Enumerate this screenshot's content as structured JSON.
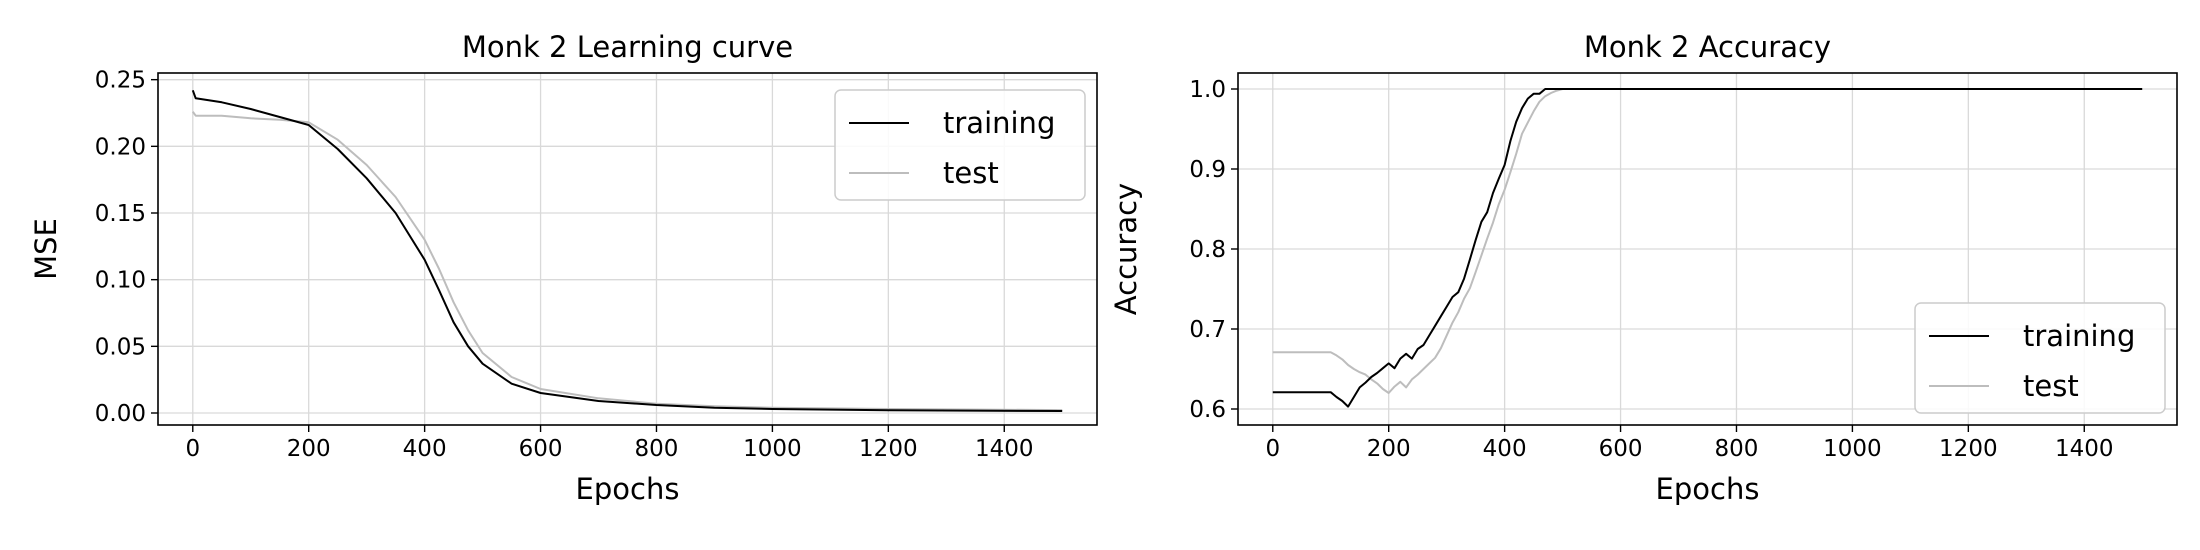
{
  "chart_data": [
    {
      "type": "line",
      "title": "Monk 2 Learning curve",
      "xlabel": "Epochs",
      "ylabel": "MSE",
      "xlim": [
        -60,
        1560
      ],
      "ylim": [
        -0.009,
        0.255
      ],
      "xticks": [
        0,
        200,
        400,
        600,
        800,
        1000,
        1200,
        1400
      ],
      "xtick_labels": [
        "0",
        "200",
        "400",
        "600",
        "800",
        "1000",
        "1200",
        "1400"
      ],
      "yticks": [
        0.0,
        0.05,
        0.1,
        0.15,
        0.2,
        0.25
      ],
      "ytick_labels": [
        "0.00",
        "0.05",
        "0.10",
        "0.15",
        "0.20",
        "0.25"
      ],
      "grid": true,
      "legend_position": "upper right",
      "series": [
        {
          "name": "training",
          "color": "#000000",
          "x": [
            0,
            5,
            50,
            100,
            150,
            200,
            250,
            300,
            350,
            400,
            425,
            450,
            475,
            500,
            550,
            600,
            700,
            800,
            900,
            1000,
            1200,
            1500
          ],
          "y": [
            0.242,
            0.236,
            0.233,
            0.228,
            0.222,
            0.216,
            0.198,
            0.176,
            0.15,
            0.115,
            0.092,
            0.068,
            0.05,
            0.037,
            0.022,
            0.015,
            0.009,
            0.006,
            0.004,
            0.003,
            0.002,
            0.0015
          ]
        },
        {
          "name": "test",
          "color": "#bdbdbd",
          "x": [
            0,
            5,
            50,
            100,
            150,
            200,
            250,
            300,
            350,
            400,
            425,
            450,
            475,
            500,
            550,
            600,
            700,
            800,
            900,
            1000,
            1200,
            1500
          ],
          "y": [
            0.226,
            0.223,
            0.223,
            0.221,
            0.22,
            0.218,
            0.205,
            0.186,
            0.162,
            0.13,
            0.108,
            0.083,
            0.062,
            0.045,
            0.027,
            0.018,
            0.011,
            0.007,
            0.005,
            0.004,
            0.003,
            0.0022
          ]
        }
      ]
    },
    {
      "type": "line",
      "title": "Monk 2 Accuracy",
      "xlabel": "Epochs",
      "ylabel": "Accuracy",
      "xlim": [
        -60,
        1560
      ],
      "ylim": [
        0.58,
        1.02
      ],
      "xticks": [
        0,
        200,
        400,
        600,
        800,
        1000,
        1200,
        1400
      ],
      "xtick_labels": [
        "0",
        "200",
        "400",
        "600",
        "800",
        "1000",
        "1200",
        "1400"
      ],
      "yticks": [
        0.6,
        0.7,
        0.8,
        0.9,
        1.0
      ],
      "ytick_labels": [
        "0.6",
        "0.7",
        "0.8",
        "0.9",
        "1.0"
      ],
      "grid": true,
      "legend_position": "lower right",
      "series": [
        {
          "name": "training",
          "color": "#000000",
          "x": [
            0,
            100,
            110,
            120,
            130,
            140,
            150,
            160,
            170,
            180,
            190,
            200,
            210,
            220,
            230,
            240,
            250,
            260,
            270,
            280,
            290,
            300,
            310,
            320,
            330,
            340,
            350,
            360,
            370,
            380,
            390,
            400,
            410,
            420,
            430,
            440,
            450,
            460,
            470,
            480,
            490,
            500,
            510,
            520,
            1500
          ],
          "y": [
            0.621,
            0.621,
            0.615,
            0.61,
            0.603,
            0.615,
            0.627,
            0.633,
            0.64,
            0.645,
            0.651,
            0.657,
            0.651,
            0.663,
            0.669,
            0.663,
            0.675,
            0.68,
            0.692,
            0.704,
            0.716,
            0.728,
            0.74,
            0.746,
            0.763,
            0.787,
            0.811,
            0.834,
            0.846,
            0.87,
            0.888,
            0.905,
            0.935,
            0.959,
            0.976,
            0.988,
            0.994,
            0.994,
            1.0,
            1.0,
            1.0,
            1.0,
            1.0,
            1.0,
            1.0
          ]
        },
        {
          "name": "test",
          "color": "#bdbdbd",
          "x": [
            0,
            100,
            110,
            120,
            130,
            140,
            150,
            160,
            170,
            180,
            190,
            200,
            210,
            220,
            230,
            240,
            250,
            260,
            270,
            280,
            290,
            300,
            310,
            320,
            330,
            340,
            350,
            360,
            370,
            380,
            390,
            400,
            410,
            420,
            430,
            440,
            450,
            460,
            470,
            480,
            490,
            500,
            510,
            520,
            1500
          ],
          "y": [
            0.671,
            0.671,
            0.667,
            0.662,
            0.655,
            0.65,
            0.646,
            0.643,
            0.637,
            0.632,
            0.625,
            0.62,
            0.628,
            0.634,
            0.627,
            0.637,
            0.643,
            0.65,
            0.657,
            0.664,
            0.676,
            0.692,
            0.708,
            0.721,
            0.738,
            0.751,
            0.771,
            0.792,
            0.813,
            0.833,
            0.856,
            0.874,
            0.896,
            0.919,
            0.944,
            0.958,
            0.972,
            0.984,
            0.991,
            0.995,
            0.998,
            1.0,
            1.0,
            1.0,
            1.0
          ]
        }
      ]
    }
  ]
}
